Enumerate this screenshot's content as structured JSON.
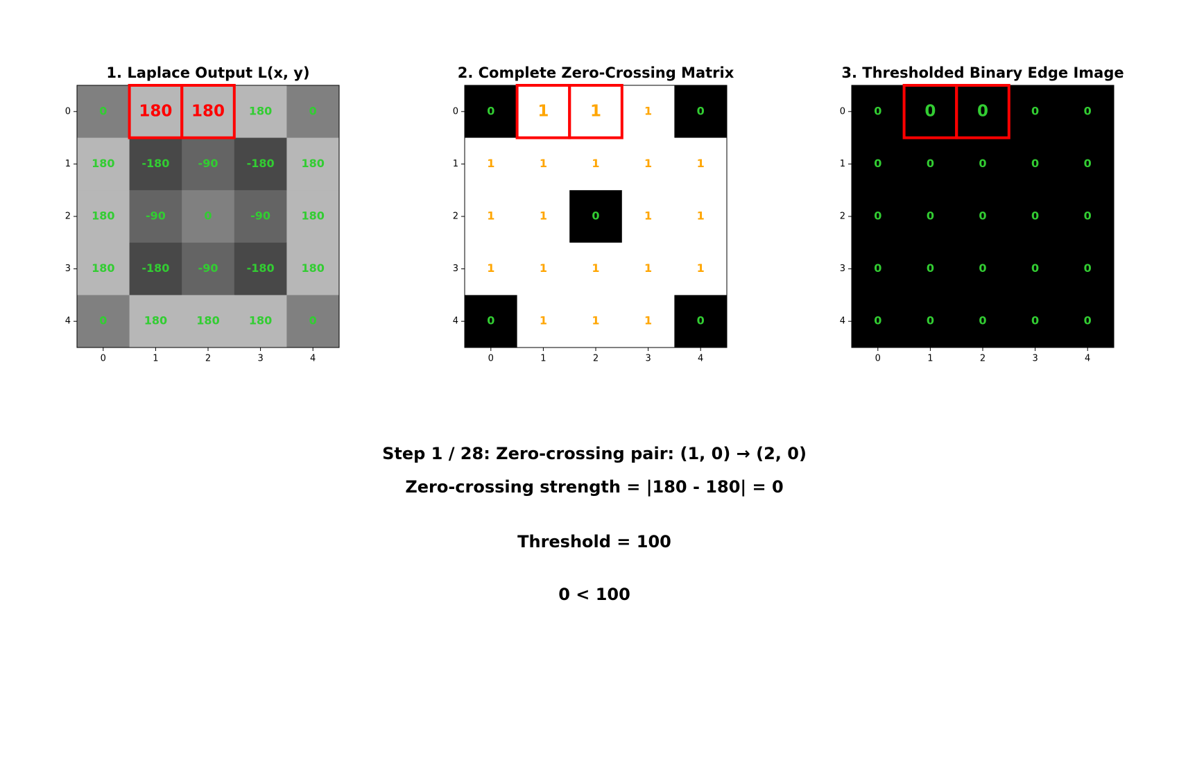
{
  "chart_data": [
    {
      "type": "heatmap",
      "title": "1. Laplace Output L(x, y)",
      "values": [
        [
          0,
          180,
          180,
          180,
          0
        ],
        [
          180,
          -180,
          -90,
          -180,
          180
        ],
        [
          180,
          -90,
          0,
          -90,
          180
        ],
        [
          180,
          -180,
          -90,
          -180,
          180
        ],
        [
          0,
          180,
          180,
          180,
          0
        ]
      ],
      "vlim": [
        -410,
        410
      ],
      "xlim": [
        -0.5,
        4.5
      ],
      "ylim": [
        4.5,
        -0.5
      ],
      "xticks": [
        0,
        1,
        2,
        3,
        4
      ],
      "yticks": [
        0,
        1,
        2,
        3,
        4
      ],
      "text_color": "#32cd32",
      "highlight": [
        [
          0,
          1
        ],
        [
          0,
          2
        ]
      ],
      "highlight_color": "#ff0000",
      "highlight_text_color": "#ff0000"
    },
    {
      "type": "heatmap",
      "title": "2. Complete Zero-Crossing Matrix",
      "values": [
        [
          0,
          1,
          1,
          1,
          0
        ],
        [
          1,
          1,
          1,
          1,
          1
        ],
        [
          1,
          1,
          0,
          1,
          1
        ],
        [
          1,
          1,
          1,
          1,
          1
        ],
        [
          0,
          1,
          1,
          1,
          0
        ]
      ],
      "vlim": [
        0,
        1
      ],
      "xlim": [
        -0.5,
        4.5
      ],
      "ylim": [
        4.5,
        -0.5
      ],
      "xticks": [
        0,
        1,
        2,
        3,
        4
      ],
      "yticks": [
        0,
        1,
        2,
        3,
        4
      ],
      "text_color": "#32cd32",
      "text_color_one": "#ffa500",
      "highlight": [
        [
          0,
          1
        ],
        [
          0,
          2
        ]
      ],
      "highlight_color": "#ff0000"
    },
    {
      "type": "heatmap",
      "title": "3. Thresholded Binary Edge Image",
      "values": [
        [
          0,
          0,
          0,
          0,
          0
        ],
        [
          0,
          0,
          0,
          0,
          0
        ],
        [
          0,
          0,
          0,
          0,
          0
        ],
        [
          0,
          0,
          0,
          0,
          0
        ],
        [
          0,
          0,
          0,
          0,
          0
        ]
      ],
      "vlim": [
        0,
        1
      ],
      "xlim": [
        -0.5,
        4.5
      ],
      "ylim": [
        4.5,
        -0.5
      ],
      "xticks": [
        0,
        1,
        2,
        3,
        4
      ],
      "yticks": [
        0,
        1,
        2,
        3,
        4
      ],
      "text_color": "#32cd32",
      "highlight": [
        [
          0,
          1
        ],
        [
          0,
          2
        ]
      ],
      "highlight_color": "#ff0000"
    }
  ],
  "annotations": [
    "Step 1 / 28: Zero-crossing pair: (1, 0) → (2, 0)",
    "Zero-crossing strength = |180 - 180| = 0",
    "Threshold = 100",
    "0 < 100"
  ]
}
